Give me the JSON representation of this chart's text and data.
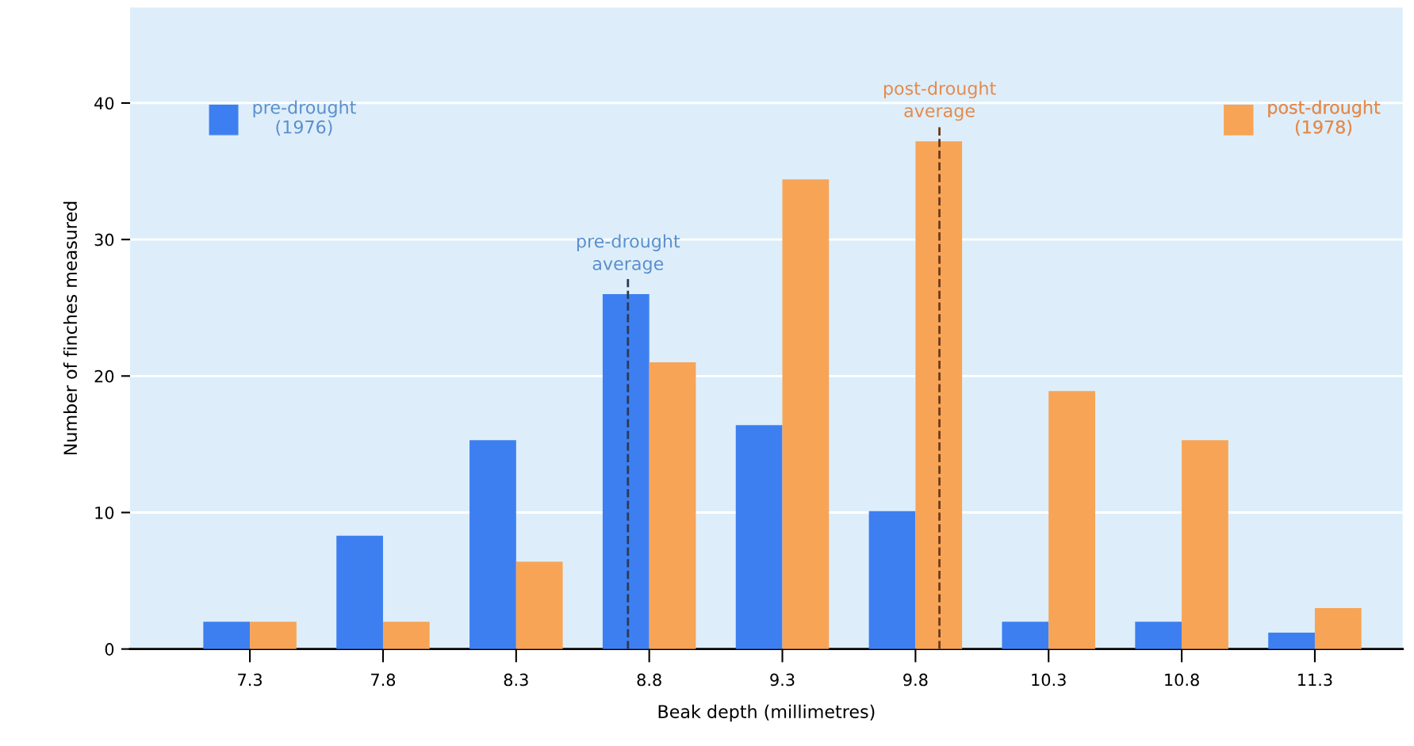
{
  "chart_data": {
    "type": "bar",
    "xlabel": "Beak depth (millimetres)",
    "ylabel": "Number of finches measured",
    "x": [
      7.3,
      7.8,
      8.3,
      8.8,
      9.3,
      9.8,
      10.3,
      10.8,
      11.3
    ],
    "series": [
      {
        "name": "pre-drought\n(1976)",
        "color": "#3d7ff0",
        "values": [
          2,
          8.3,
          15.3,
          26,
          16.4,
          10.1,
          2,
          2,
          1.2
        ]
      },
      {
        "name": "post-drought\n(1978)",
        "color": "#f7a456",
        "values": [
          2,
          2,
          6.4,
          21,
          34.4,
          37.2,
          18.9,
          15.3,
          3
        ]
      }
    ],
    "xlim": [
      6.85,
      11.63
    ],
    "xticks": [
      7.3,
      7.8,
      8.3,
      8.8,
      9.3,
      9.8,
      10.3,
      10.8,
      11.3
    ],
    "ylim": [
      0,
      47
    ],
    "yticks": [
      0,
      10,
      20,
      30,
      40
    ],
    "ref_lines": [
      {
        "axis": "x",
        "value": 8.72,
        "label": "pre-drought\naverage",
        "color": "#2a3a55",
        "line_style": "dashed"
      },
      {
        "axis": "x",
        "value": 9.89,
        "label": "post-drought\naverage",
        "color": "#6b3a1a",
        "line_style": "dashed"
      }
    ],
    "grid": "y",
    "legend": "top"
  }
}
